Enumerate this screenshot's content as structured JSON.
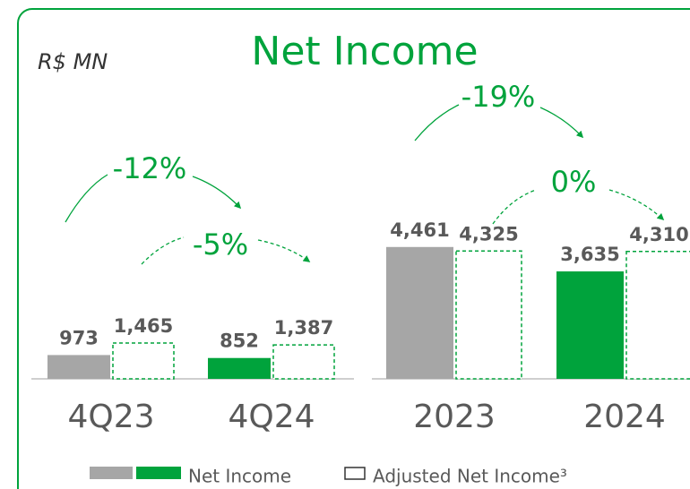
{
  "unit_label": "R$ MN",
  "chart_data": [
    {
      "type": "bar",
      "title": "Net Income",
      "categories": [
        "4Q23",
        "4Q24"
      ],
      "series": [
        {
          "name": "Net Income",
          "colors": [
            "#a6a6a6",
            "#00a33c"
          ],
          "values": [
            973,
            852
          ],
          "value_labels": [
            "973",
            "852"
          ]
        },
        {
          "name": "Adjusted Net Income³",
          "color": "#00a33c",
          "values": [
            1465,
            1387
          ],
          "value_labels": [
            "1,465",
            "1,387"
          ]
        }
      ],
      "ylim": [
        0,
        7250
      ],
      "annotations": [
        "-12%",
        "-5%"
      ]
    },
    {
      "type": "bar",
      "categories": [
        "2023",
        "2024"
      ],
      "series": [
        {
          "name": "Net Income",
          "colors": [
            "#a6a6a6",
            "#00a33c"
          ],
          "values": [
            4461,
            3635
          ],
          "value_labels": [
            "4,461",
            "3,635"
          ]
        },
        {
          "name": "Adjusted Net Income³",
          "color": "#00a33c",
          "values": [
            4325,
            4310
          ],
          "value_labels": [
            "4,325",
            "4,310"
          ]
        }
      ],
      "ylim": [
        0,
        6000
      ],
      "annotations": [
        "-19%",
        "0%"
      ]
    }
  ]
}
